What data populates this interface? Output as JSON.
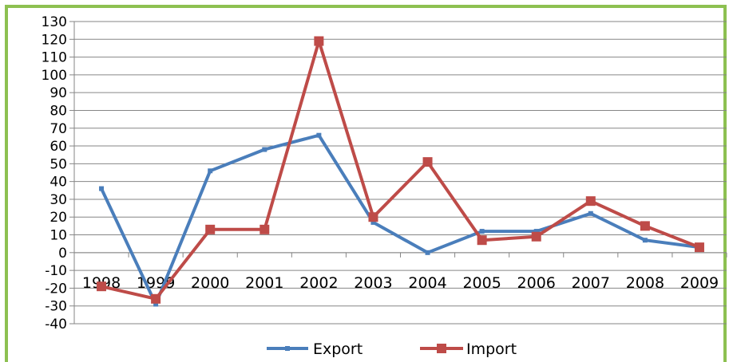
{
  "chart_data": {
    "type": "line",
    "title": "",
    "xlabel": "",
    "ylabel": "",
    "categories": [
      "1998",
      "1999",
      "2000",
      "2001",
      "2002",
      "2003",
      "2004",
      "2005",
      "2006",
      "2007",
      "2008",
      "2009"
    ],
    "ylim": [
      -40,
      130
    ],
    "ytick_step": 10,
    "grid": "horizontal",
    "legend": "bottom",
    "series": [
      {
        "name": "Export",
        "color": "#4a7ebb",
        "marker": "small-square",
        "values": [
          36,
          -29,
          46,
          58,
          66,
          17,
          0,
          12,
          12,
          22,
          7,
          3
        ]
      },
      {
        "name": "Import",
        "color": "#be4b48",
        "marker": "square",
        "values": [
          -19,
          -26,
          13,
          13,
          119,
          20,
          51,
          7,
          9,
          29,
          15,
          3
        ]
      }
    ]
  }
}
